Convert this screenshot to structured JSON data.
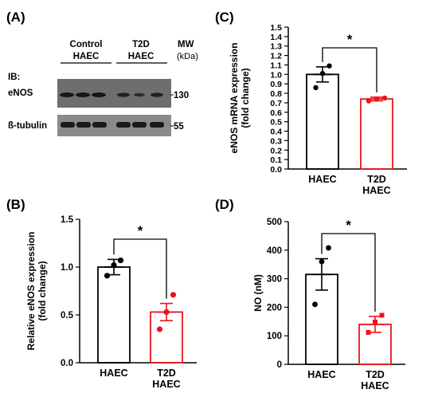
{
  "panels": {
    "A": {
      "letter": "(A)",
      "group_labels": [
        "Control\nHAEC",
        "T2D\nHAEC"
      ],
      "mw_header": "MW",
      "mw_unit": "(kDa)",
      "ib_label": "IB:",
      "rows": [
        {
          "label": "eNOS",
          "mw": "130"
        },
        {
          "label": "ß-tubulin",
          "mw": "55"
        }
      ]
    },
    "B": {
      "letter": "(B)"
    },
    "C": {
      "letter": "(C)"
    },
    "D": {
      "letter": "(D)"
    }
  },
  "colors": {
    "control": "#000000",
    "t2d": "#e8151b"
  },
  "chart_data": [
    {
      "panel": "B",
      "type": "bar",
      "categories": [
        "HAEC",
        "T2D\nHAEC"
      ],
      "values": [
        1.0,
        0.53
      ],
      "errors": [
        0.08,
        0.09
      ],
      "points": [
        [
          0.91,
          1.02,
          1.07
        ],
        [
          0.35,
          0.53,
          0.71
        ]
      ],
      "ylabel": "Relative eNOS expression\n(fold change)",
      "ylim": [
        0,
        1.5
      ],
      "yticks": [
        "0.0",
        "0.5",
        "1.0",
        "1.5"
      ],
      "annotation": "*"
    },
    {
      "panel": "C",
      "type": "bar",
      "categories": [
        "HAEC",
        "T2D\nHAEC"
      ],
      "values": [
        1.0,
        0.74
      ],
      "errors": [
        0.08,
        0.02
      ],
      "points": [
        [
          0.86,
          1.01,
          1.09
        ],
        [
          0.72,
          0.74,
          0.75
        ]
      ],
      "ylabel": "eNOS mRNA expression\n(fold change)",
      "ylim": [
        0,
        1.5
      ],
      "yticks": [
        "0.0",
        "0.1",
        "0.2",
        "0.3",
        "0.4",
        "0.5",
        "0.6",
        "0.7",
        "0.8",
        "0.9",
        "1.0",
        "1.1",
        "1.2",
        "1.3",
        "1.4",
        "1.5"
      ],
      "annotation": "*"
    },
    {
      "panel": "D",
      "type": "bar",
      "categories": [
        "HAEC",
        "T2D\nHAEC"
      ],
      "values": [
        315,
        140
      ],
      "errors": [
        55,
        28
      ],
      "points": [
        [
          210,
          360,
          408
        ],
        [
          112,
          148,
          172
        ]
      ],
      "ylabel": "NO (nM)",
      "ylim": [
        0,
        500
      ],
      "yticks": [
        "0",
        "100",
        "200",
        "300",
        "400",
        "500"
      ],
      "annotation": "*"
    }
  ]
}
